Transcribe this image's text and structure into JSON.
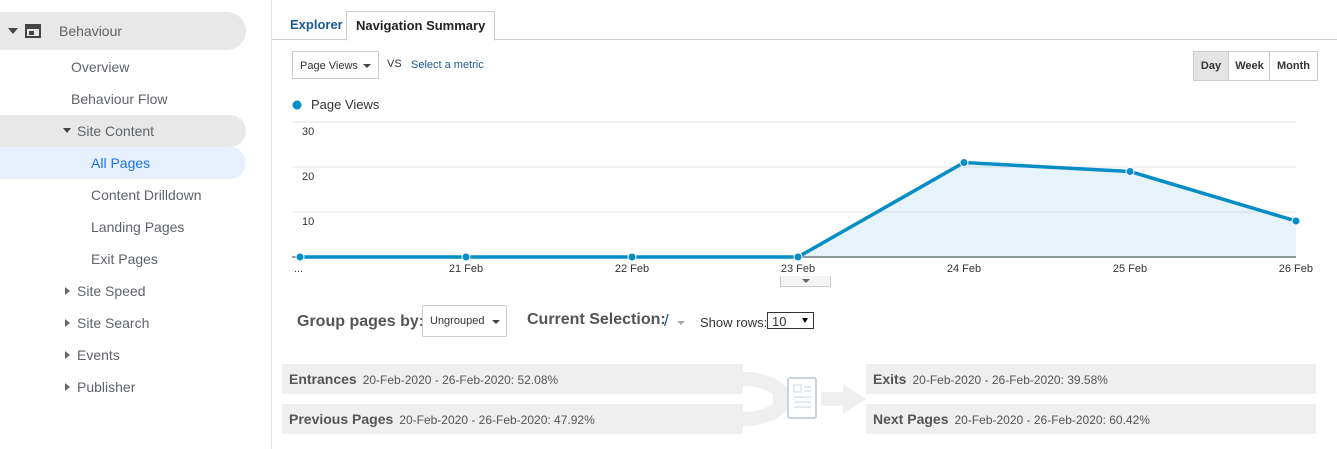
{
  "sidebar": {
    "items": [
      "Behaviour",
      "Overview",
      "Behaviour Flow",
      "Site Content",
      "All Pages",
      "Content Drilldown",
      "Landing Pages",
      "Exit Pages",
      "Site Speed",
      "Site Search",
      "Events",
      "Publisher"
    ]
  },
  "tabs": [
    "Explorer",
    "Navigation Summary"
  ],
  "controls": {
    "metric": "Page Views",
    "vs": "VS",
    "select_metric": "Select a metric",
    "periods": [
      "Day",
      "Week",
      "Month"
    ]
  },
  "chart_data": {
    "type": "line",
    "categories": [
      "...",
      "21 Feb",
      "22 Feb",
      "23 Feb",
      "24 Feb",
      "25 Feb",
      "26 Feb"
    ],
    "series": [
      {
        "name": "Page Views",
        "color": "#058dc7",
        "values": [
          0,
          0,
          0,
          0,
          21,
          19,
          8
        ]
      }
    ],
    "ylim": [
      0,
      30
    ],
    "yticks": [
      10,
      20,
      30
    ],
    "grid": true,
    "area": true
  },
  "grouping": {
    "group_label": "Group pages by:",
    "group_value": "Ungrouped",
    "selection_label": "Current Selection:",
    "selection_value": "/",
    "rows_label": "Show rows:",
    "rows_value": "10"
  },
  "flows": [
    {
      "label": "Entrances",
      "text": "20-Feb-2020 - 26-Feb-2020: 52.08%"
    },
    {
      "label": "Previous Pages",
      "text": "20-Feb-2020 - 26-Feb-2020: 47.92%"
    },
    {
      "label": "Exits",
      "text": "20-Feb-2020 - 26-Feb-2020: 39.58%"
    },
    {
      "label": "Next Pages",
      "text": "20-Feb-2020 - 26-Feb-2020: 60.42%"
    }
  ]
}
